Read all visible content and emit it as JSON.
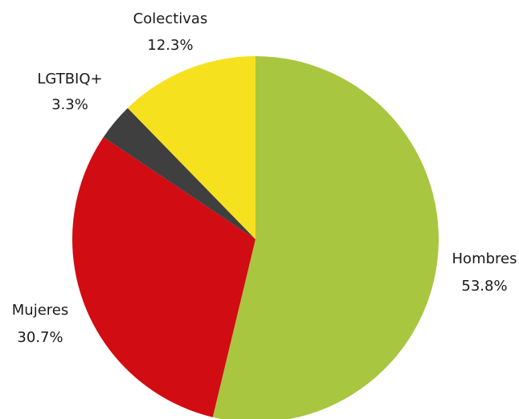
{
  "chart_data": {
    "type": "pie",
    "title": "",
    "slices": [
      {
        "label": "Hombres",
        "value": 53.8,
        "value_label": "53.8%",
        "color": "#a8c640"
      },
      {
        "label": "Mujeres",
        "value": 30.7,
        "value_label": "30.7%",
        "color": "#d10c13"
      },
      {
        "label": "LGTBIQ+",
        "value": 3.3,
        "value_label": "3.3%",
        "color": "#3f3f3f"
      },
      {
        "label": "Colectivas",
        "value": 12.3,
        "value_label": "12.3%",
        "color": "#f6e11f"
      }
    ],
    "start_angle": "top (12 o'clock)",
    "direction": "clockwise",
    "legend": "none (labels beside slices)"
  }
}
